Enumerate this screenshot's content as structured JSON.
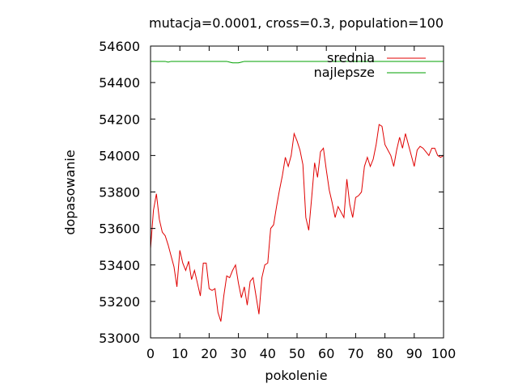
{
  "chart_data": {
    "type": "line",
    "title": "mutacja=0.0001, cross=0.3, population=100",
    "xlabel": "pokolenie",
    "ylabel": "dopasowanie",
    "xlim": [
      0,
      100
    ],
    "ylim": [
      53000,
      54600
    ],
    "xticks": [
      0,
      10,
      20,
      30,
      40,
      50,
      60,
      70,
      80,
      90,
      100
    ],
    "yticks": [
      53000,
      53200,
      53400,
      53600,
      53800,
      54000,
      54200,
      54400,
      54600
    ],
    "grid": false,
    "legend_position": "top-right",
    "x": [
      0,
      1,
      2,
      3,
      4,
      5,
      6,
      7,
      8,
      9,
      10,
      11,
      12,
      13,
      14,
      15,
      16,
      17,
      18,
      19,
      20,
      21,
      22,
      23,
      24,
      25,
      26,
      27,
      28,
      29,
      30,
      31,
      32,
      33,
      34,
      35,
      36,
      37,
      38,
      39,
      40,
      41,
      42,
      43,
      44,
      45,
      46,
      47,
      48,
      49,
      50,
      51,
      52,
      53,
      54,
      55,
      56,
      57,
      58,
      59,
      60,
      61,
      62,
      63,
      64,
      65,
      66,
      67,
      68,
      69,
      70,
      71,
      72,
      73,
      74,
      75,
      76,
      77,
      78,
      79,
      80,
      81,
      82,
      83,
      84,
      85,
      86,
      87,
      88,
      89,
      90,
      91,
      92,
      93,
      94,
      95,
      96,
      97,
      98,
      99,
      100
    ],
    "series": [
      {
        "name": "srednia",
        "color": "#e00000",
        "values": [
          53490,
          53700,
          53790,
          53650,
          53580,
          53560,
          53510,
          53450,
          53390,
          53280,
          53480,
          53410,
          53370,
          53420,
          53320,
          53370,
          53300,
          53230,
          53410,
          53410,
          53270,
          53260,
          53270,
          53140,
          53090,
          53230,
          53340,
          53330,
          53370,
          53400,
          53300,
          53220,
          53280,
          53180,
          53310,
          53330,
          53230,
          53130,
          53330,
          53400,
          53410,
          53600,
          53620,
          53720,
          53810,
          53890,
          53990,
          53940,
          54000,
          54120,
          54080,
          54030,
          53950,
          53660,
          53590,
          53770,
          53960,
          53880,
          54020,
          54040,
          53920,
          53810,
          53740,
          53660,
          53720,
          53690,
          53660,
          53870,
          53730,
          53660,
          53770,
          53780,
          53800,
          53940,
          53990,
          53940,
          53980,
          54060,
          54170,
          54160,
          54060,
          54030,
          54000,
          53940,
          54030,
          54100,
          54040,
          54120,
          54060,
          54000,
          53940,
          54030,
          54050,
          54040,
          54020,
          54000,
          54040,
          54040,
          54000,
          53990,
          54000
        ]
      },
      {
        "name": "najlepsze",
        "color": "#00a000",
        "values": [
          54516,
          54516,
          54516,
          54516,
          54516,
          54516,
          54512,
          54516,
          54516,
          54516,
          54516,
          54516,
          54516,
          54516,
          54516,
          54516,
          54516,
          54516,
          54516,
          54516,
          54516,
          54516,
          54516,
          54516,
          54516,
          54516,
          54516,
          54512,
          54508,
          54508,
          54508,
          54512,
          54516,
          54516,
          54516,
          54516,
          54516,
          54516,
          54516,
          54516,
          54516,
          54516,
          54516,
          54516,
          54516,
          54516,
          54516,
          54516,
          54516,
          54516,
          54516,
          54516,
          54516,
          54516,
          54516,
          54516,
          54516,
          54516,
          54516,
          54516,
          54516,
          54516,
          54516,
          54516,
          54516,
          54516,
          54516,
          54516,
          54516,
          54516,
          54516,
          54516,
          54516,
          54516,
          54516,
          54516,
          54516,
          54516,
          54516,
          54516,
          54516,
          54516,
          54516,
          54516,
          54516,
          54516,
          54516,
          54516,
          54516,
          54516,
          54516,
          54516,
          54516,
          54516,
          54516,
          54516,
          54516,
          54516,
          54516,
          54516,
          54516
        ]
      }
    ]
  }
}
